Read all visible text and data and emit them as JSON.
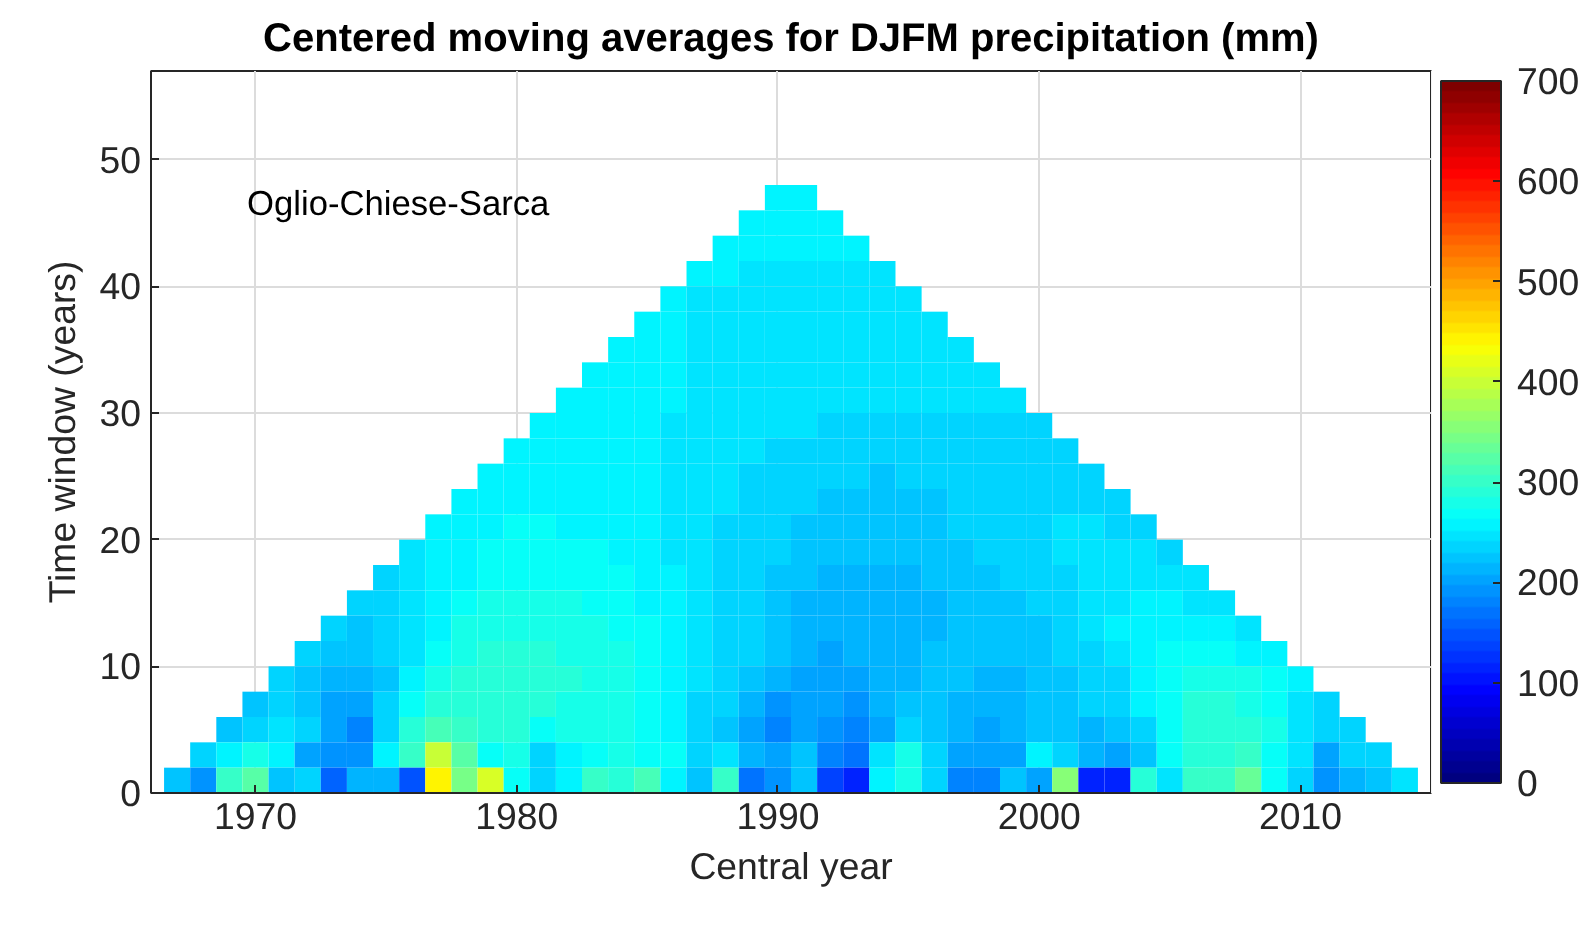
{
  "chart_data": {
    "type": "heatmap",
    "title": "Centered moving averages for DJFM precipitation (mm)",
    "xlabel": "Central year",
    "ylabel": "Time window (years)",
    "annotations": [
      "Oglio-Chiese-Sarca"
    ],
    "x": [
      1967,
      1968,
      1969,
      1970,
      1971,
      1972,
      1973,
      1974,
      1975,
      1976,
      1977,
      1978,
      1979,
      1980,
      1981,
      1982,
      1983,
      1984,
      1985,
      1986,
      1987,
      1988,
      1989,
      1990,
      1991,
      1992,
      1993,
      1994,
      1995,
      1996,
      1997,
      1998,
      1999,
      2000,
      2001,
      2002,
      2003,
      2004,
      2005,
      2006,
      2007,
      2008,
      2009,
      2010,
      2011,
      2012,
      2013,
      2014
    ],
    "y": [
      47,
      45,
      43,
      41,
      39,
      37,
      35,
      33,
      31,
      29,
      27,
      25,
      23,
      21,
      19,
      17,
      15,
      13,
      11,
      9,
      7,
      5,
      3,
      1
    ],
    "xlim": [
      1966,
      2015
    ],
    "xticks": [
      1970,
      1980,
      1990,
      2000,
      2010
    ],
    "ylim": [
      0,
      57
    ],
    "yticks": [
      0,
      10,
      20,
      30,
      40,
      50
    ],
    "clim": [
      0,
      700
    ],
    "cticks": [
      0,
      100,
      200,
      300,
      400,
      500,
      600,
      700
    ],
    "grid": true,
    "cells": [
      [
        null,
        null,
        null,
        null,
        null,
        null,
        null,
        null,
        null,
        null,
        null,
        null,
        null,
        null,
        null,
        null,
        null,
        null,
        null,
        null,
        null,
        null,
        null,
        255,
        255,
        null,
        null,
        null,
        null,
        null,
        null,
        null,
        null,
        null,
        null,
        null,
        null,
        null,
        null,
        null,
        null,
        null,
        null,
        null,
        null,
        null,
        null,
        null
      ],
      [
        null,
        null,
        null,
        null,
        null,
        null,
        null,
        null,
        null,
        null,
        null,
        null,
        null,
        null,
        null,
        null,
        null,
        null,
        null,
        null,
        null,
        null,
        254,
        254,
        254,
        254,
        null,
        null,
        null,
        null,
        null,
        null,
        null,
        null,
        null,
        null,
        null,
        null,
        null,
        null,
        null,
        null,
        null,
        null,
        null,
        null,
        null,
        null
      ],
      [
        null,
        null,
        null,
        null,
        null,
        null,
        null,
        null,
        null,
        null,
        null,
        null,
        null,
        null,
        null,
        null,
        null,
        null,
        null,
        null,
        null,
        253,
        253,
        252,
        252,
        252,
        252,
        null,
        null,
        null,
        null,
        null,
        null,
        null,
        null,
        null,
        null,
        null,
        null,
        null,
        null,
        null,
        null,
        null,
        null,
        null,
        null,
        null
      ],
      [
        null,
        null,
        null,
        null,
        null,
        null,
        null,
        null,
        null,
        null,
        null,
        null,
        null,
        null,
        null,
        null,
        null,
        null,
        null,
        null,
        252,
        252,
        251,
        251,
        251,
        251,
        251,
        251,
        null,
        null,
        null,
        null,
        null,
        null,
        null,
        null,
        null,
        null,
        null,
        null,
        null,
        null,
        null,
        null,
        null,
        null,
        null,
        null
      ],
      [
        null,
        null,
        null,
        null,
        null,
        null,
        null,
        null,
        null,
        null,
        null,
        null,
        null,
        null,
        null,
        null,
        null,
        null,
        null,
        252,
        251,
        251,
        250,
        250,
        250,
        250,
        250,
        250,
        250,
        null,
        null,
        null,
        null,
        null,
        null,
        null,
        null,
        null,
        null,
        null,
        null,
        null,
        null,
        null,
        null,
        null,
        null,
        null
      ],
      [
        null,
        null,
        null,
        null,
        null,
        null,
        null,
        null,
        null,
        null,
        null,
        null,
        null,
        null,
        null,
        null,
        null,
        null,
        253,
        252,
        251,
        250,
        250,
        249,
        249,
        248,
        248,
        248,
        248,
        248,
        null,
        null,
        null,
        null,
        null,
        null,
        null,
        null,
        null,
        null,
        null,
        null,
        null,
        null,
        null,
        null,
        null,
        null
      ],
      [
        null,
        null,
        null,
        null,
        null,
        null,
        null,
        null,
        null,
        null,
        null,
        null,
        null,
        null,
        null,
        null,
        null,
        254,
        253,
        252,
        251,
        250,
        249,
        248,
        247,
        247,
        246,
        246,
        246,
        246,
        247,
        null,
        null,
        null,
        null,
        null,
        null,
        null,
        null,
        null,
        null,
        null,
        null,
        null,
        null,
        null,
        null,
        null
      ],
      [
        null,
        null,
        null,
        null,
        null,
        null,
        null,
        null,
        null,
        null,
        null,
        null,
        null,
        null,
        null,
        null,
        255,
        254,
        253,
        252,
        251,
        250,
        248,
        247,
        246,
        245,
        244,
        244,
        244,
        244,
        244,
        245,
        null,
        null,
        null,
        null,
        null,
        null,
        null,
        null,
        null,
        null,
        null,
        null,
        null,
        null,
        null,
        null
      ],
      [
        null,
        null,
        null,
        null,
        null,
        null,
        null,
        null,
        null,
        null,
        null,
        null,
        null,
        null,
        null,
        255,
        255,
        254,
        253,
        252,
        250,
        249,
        247,
        245,
        244,
        243,
        242,
        241,
        241,
        241,
        241,
        242,
        242,
        null,
        null,
        null,
        null,
        null,
        null,
        null,
        null,
        null,
        null,
        null,
        null,
        null,
        null,
        null
      ],
      [
        null,
        null,
        null,
        null,
        null,
        null,
        null,
        null,
        null,
        null,
        null,
        null,
        null,
        null,
        256,
        256,
        255,
        254,
        253,
        251,
        249,
        247,
        245,
        243,
        241,
        240,
        239,
        238,
        238,
        238,
        239,
        239,
        240,
        240,
        null,
        null,
        null,
        null,
        null,
        null,
        null,
        null,
        null,
        null,
        null,
        null,
        null,
        null
      ],
      [
        null,
        null,
        null,
        null,
        null,
        null,
        null,
        null,
        null,
        null,
        null,
        null,
        null,
        258,
        258,
        257,
        256,
        254,
        252,
        250,
        247,
        244,
        242,
        240,
        238,
        236,
        235,
        234,
        234,
        235,
        236,
        237,
        238,
        238,
        237,
        null,
        null,
        null,
        null,
        null,
        null,
        null,
        null,
        null,
        null,
        null,
        null,
        null
      ],
      [
        null,
        null,
        null,
        null,
        null,
        null,
        null,
        null,
        null,
        null,
        null,
        null,
        258,
        260,
        260,
        259,
        257,
        255,
        252,
        249,
        246,
        243,
        240,
        237,
        234,
        232,
        230,
        229,
        230,
        232,
        234,
        236,
        237,
        238,
        237,
        236,
        null,
        null,
        null,
        null,
        null,
        null,
        null,
        null,
        null,
        null,
        null,
        null
      ],
      [
        null,
        null,
        null,
        null,
        null,
        null,
        null,
        null,
        null,
        null,
        null,
        258,
        260,
        262,
        262,
        260,
        258,
        255,
        252,
        248,
        245,
        241,
        238,
        234,
        231,
        228,
        226,
        225,
        226,
        228,
        231,
        234,
        236,
        238,
        239,
        238,
        236,
        null,
        null,
        null,
        null,
        null,
        null,
        null,
        null,
        null,
        null,
        null
      ],
      [
        null,
        null,
        null,
        null,
        null,
        null,
        null,
        null,
        null,
        null,
        255,
        258,
        262,
        264,
        264,
        262,
        260,
        256,
        252,
        248,
        244,
        240,
        236,
        232,
        228,
        225,
        223,
        223,
        225,
        228,
        231,
        234,
        237,
        240,
        242,
        242,
        240,
        238,
        null,
        null,
        null,
        null,
        null,
        null,
        null,
        null,
        null,
        null
      ],
      [
        null,
        null,
        null,
        null,
        null,
        null,
        null,
        null,
        null,
        248,
        255,
        260,
        265,
        268,
        268,
        266,
        264,
        260,
        256,
        250,
        245,
        240,
        235,
        230,
        226,
        222,
        220,
        220,
        222,
        224,
        228,
        232,
        236,
        240,
        242,
        244,
        244,
        242,
        240,
        null,
        null,
        null,
        null,
        null,
        null,
        null,
        null,
        null
      ],
      [
        null,
        null,
        null,
        null,
        null,
        null,
        null,
        null,
        240,
        245,
        255,
        262,
        270,
        272,
        272,
        270,
        268,
        264,
        260,
        254,
        246,
        240,
        234,
        228,
        222,
        218,
        216,
        216,
        218,
        220,
        224,
        228,
        232,
        236,
        240,
        244,
        246,
        246,
        244,
        242,
        null,
        null,
        null,
        null,
        null,
        null,
        null,
        null
      ],
      [
        null,
        null,
        null,
        null,
        null,
        null,
        null,
        235,
        238,
        245,
        258,
        268,
        275,
        278,
        278,
        276,
        272,
        268,
        262,
        255,
        246,
        238,
        230,
        224,
        218,
        212,
        210,
        212,
        214,
        218,
        222,
        225,
        228,
        232,
        240,
        246,
        250,
        252,
        252,
        250,
        248,
        null,
        null,
        null,
        null,
        null,
        null,
        null
      ],
      [
        null,
        null,
        null,
        null,
        null,
        null,
        230,
        228,
        232,
        245,
        262,
        275,
        280,
        282,
        282,
        280,
        278,
        272,
        265,
        258,
        248,
        238,
        230,
        222,
        214,
        208,
        208,
        210,
        214,
        218,
        222,
        222,
        224,
        228,
        235,
        245,
        252,
        258,
        260,
        258,
        255,
        250,
        null,
        null,
        null,
        null,
        null,
        null
      ],
      [
        null,
        null,
        null,
        null,
        null,
        230,
        225,
        220,
        230,
        250,
        270,
        280,
        285,
        285,
        285,
        280,
        280,
        275,
        270,
        260,
        250,
        240,
        230,
        220,
        210,
        205,
        210,
        210,
        215,
        220,
        220,
        220,
        220,
        225,
        230,
        240,
        250,
        260,
        265,
        270,
        265,
        260,
        255,
        null,
        null,
        null,
        null,
        null
      ],
      [
        null,
        null,
        null,
        null,
        230,
        225,
        215,
        210,
        225,
        255,
        280,
        290,
        290,
        290,
        285,
        285,
        280,
        275,
        270,
        260,
        250,
        240,
        225,
        215,
        205,
        205,
        205,
        210,
        215,
        220,
        220,
        215,
        215,
        220,
        225,
        230,
        240,
        255,
        265,
        275,
        280,
        275,
        265,
        255,
        null,
        null,
        null,
        null
      ],
      [
        null,
        null,
        null,
        225,
        235,
        225,
        205,
        205,
        230,
        265,
        290,
        295,
        285,
        290,
        285,
        280,
        280,
        275,
        265,
        255,
        240,
        230,
        210,
        195,
        200,
        200,
        195,
        210,
        225,
        220,
        215,
        210,
        215,
        225,
        225,
        230,
        240,
        255,
        270,
        285,
        290,
        280,
        265,
        250,
        240,
        null,
        null,
        null
      ],
      [
        null,
        null,
        225,
        240,
        250,
        230,
        200,
        185,
        235,
        285,
        310,
        300,
        290,
        285,
        270,
        275,
        280,
        275,
        265,
        255,
        235,
        225,
        200,
        185,
        200,
        190,
        175,
        205,
        240,
        225,
        215,
        200,
        215,
        220,
        225,
        210,
        225,
        240,
        270,
        285,
        295,
        290,
        275,
        250,
        240,
        235,
        null,
        null
      ],
      [
        null,
        230,
        260,
        280,
        255,
        200,
        195,
        190,
        255,
        300,
        400,
        320,
        270,
        280,
        240,
        260,
        270,
        280,
        270,
        265,
        230,
        250,
        210,
        200,
        220,
        180,
        170,
        250,
        275,
        240,
        200,
        205,
        205,
        260,
        240,
        215,
        200,
        225,
        270,
        290,
        295,
        300,
        270,
        245,
        205,
        235,
        230,
        null
      ],
      [
        220,
        190,
        300,
        320,
        225,
        230,
        160,
        215,
        210,
        150,
        440,
        340,
        410,
        265,
        230,
        260,
        300,
        290,
        310,
        255,
        225,
        300,
        170,
        190,
        225,
        140,
        120,
        255,
        280,
        230,
        175,
        180,
        225,
        200,
        350,
        110,
        120,
        290,
        245,
        300,
        300,
        330,
        270,
        240,
        190,
        215,
        225,
        250
      ]
    ]
  }
}
